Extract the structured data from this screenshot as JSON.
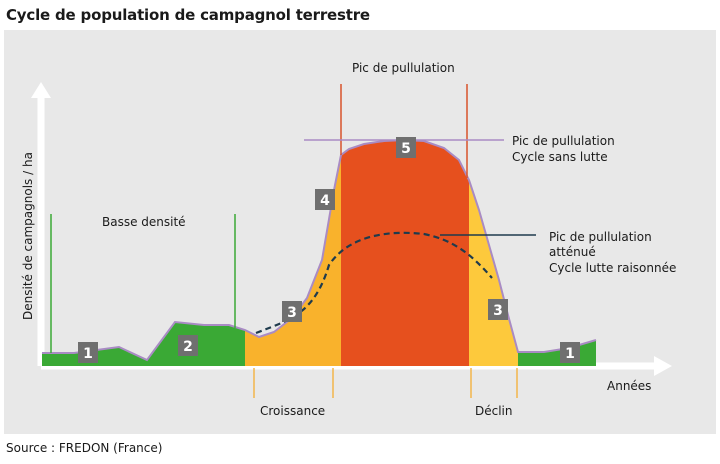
{
  "title": "Cycle de population de campagnol terrestre",
  "source": "Source : FREDON (France)",
  "axes": {
    "ylabel": "Densité de campagnols / ha",
    "xlabel": "Années"
  },
  "labels": {
    "basse_densite": "Basse densité",
    "pic_de_pullulation": "Pic de pullulation",
    "croissance": "Croissance",
    "declin": "Déclin"
  },
  "annotations": {
    "sans_lutte_line1": "Pic de pullulation",
    "sans_lutte_line2": "Cycle sans lutte",
    "attenue_line1": "Pic de pullulation",
    "attenue_line2": "atténué",
    "attenue_line3": "Cycle lutte raisonnée"
  },
  "phases": [
    {
      "label": "1",
      "color": "#3aa935"
    },
    {
      "label": "2",
      "color": "#3aa935"
    },
    {
      "label": "3",
      "color": "#f9b22c"
    },
    {
      "label": "4",
      "color": "#f9b22c"
    },
    {
      "label": "5",
      "color": "#e6501e"
    },
    {
      "label": "3",
      "color": "#fdc93c"
    },
    {
      "label": "1",
      "color": "#3aa935"
    }
  ],
  "colors": {
    "green": "#3aa935",
    "orange_light": "#f9b22c",
    "red": "#e6501e",
    "yellow": "#fdc93c",
    "curve": "#a98bc4",
    "badge": "#6f6f6f",
    "axis": "#ffffff",
    "marker_green": "#3aa935",
    "marker_red": "#d9532a",
    "marker_orange": "#f3b64a",
    "dashed": "#1f3b4d"
  }
}
